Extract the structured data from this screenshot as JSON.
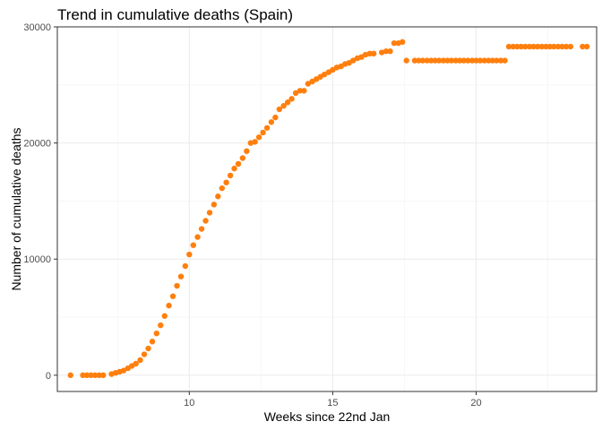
{
  "chart_data": {
    "type": "scatter",
    "title": "Trend in cumulative deaths (Spain)",
    "xlabel": "Weeks since 22nd Jan",
    "ylabel": "Number of cumulative deaths",
    "xlim": [
      5.4,
      24.2
    ],
    "ylim": [
      -1400,
      30000
    ],
    "x_ticks": [
      10,
      15,
      20
    ],
    "x_tick_labels": [
      "10",
      "15",
      "20"
    ],
    "y_ticks": [
      0,
      10000,
      20000,
      30000
    ],
    "y_tick_labels": [
      "0",
      "10000",
      "20000",
      "30000"
    ],
    "grid": true,
    "color": "#ff7f0e",
    "series": [
      {
        "x": [
          5.86,
          6.29,
          6.43,
          6.57,
          6.71,
          6.86,
          7.0,
          7.29,
          7.43,
          7.57,
          7.71,
          7.86,
          8.0,
          8.14,
          8.29,
          8.43,
          8.57,
          8.71,
          8.86,
          9.0,
          9.14,
          9.29,
          9.43,
          9.57,
          9.71,
          9.86,
          10.0,
          10.14,
          10.29,
          10.43,
          10.57,
          10.71,
          10.86,
          11.0,
          11.14,
          11.29,
          11.43,
          11.57,
          11.71,
          11.86,
          12.0,
          12.14,
          12.29,
          12.43,
          12.57,
          12.71,
          12.86,
          13.0,
          13.14,
          13.29,
          13.43,
          13.57,
          13.71,
          13.86,
          14.0,
          14.14,
          14.29,
          14.43,
          14.57,
          14.71,
          14.86,
          15.0,
          15.14,
          15.29,
          15.43,
          15.57,
          15.71,
          15.86,
          16.0,
          16.14,
          16.29,
          16.43,
          16.71,
          16.86,
          17.0,
          17.14,
          17.29,
          17.43,
          17.57,
          17.86,
          18.0,
          18.14,
          18.29,
          18.43,
          18.57,
          18.71,
          18.86,
          19.0,
          19.14,
          19.29,
          19.43,
          19.57,
          19.71,
          19.86,
          20.0,
          20.14,
          20.29,
          20.43,
          20.57,
          20.71,
          20.86,
          21.0,
          21.14,
          21.29,
          21.43,
          21.57,
          21.71,
          21.86,
          22.0,
          22.14,
          22.29,
          22.43,
          22.57,
          22.71,
          22.86,
          23.0,
          23.14,
          23.29,
          23.71,
          23.86
        ],
        "y": [
          0,
          0,
          0,
          0,
          0,
          0,
          0,
          100,
          200,
          300,
          400,
          600,
          800,
          1000,
          1300,
          1800,
          2300,
          2900,
          3600,
          4300,
          5100,
          6000,
          6800,
          7700,
          8500,
          9400,
          10400,
          11200,
          11900,
          12600,
          13300,
          14000,
          14700,
          15400,
          16100,
          16600,
          17200,
          17800,
          18200,
          18700,
          19300,
          20000,
          20100,
          20500,
          20900,
          21300,
          21800,
          22200,
          22900,
          23200,
          23500,
          23800,
          24300,
          24500,
          24500,
          25100,
          25300,
          25500,
          25700,
          25900,
          26100,
          26300,
          26500,
          26600,
          26800,
          26900,
          27100,
          27300,
          27400,
          27600,
          27700,
          27700,
          27800,
          27900,
          27900,
          28600,
          28600,
          28700,
          27100,
          27100,
          27100,
          27100,
          27100,
          27100,
          27100,
          27100,
          27100,
          27100,
          27100,
          27100,
          27100,
          27100,
          27100,
          27100,
          27100,
          27100,
          27100,
          27100,
          27100,
          27100,
          27100,
          27100,
          28300,
          28300,
          28300,
          28300,
          28300,
          28300,
          28300,
          28300,
          28300,
          28300,
          28300,
          28300,
          28300,
          28300,
          28300,
          28300,
          28300,
          28300
        ]
      }
    ]
  }
}
